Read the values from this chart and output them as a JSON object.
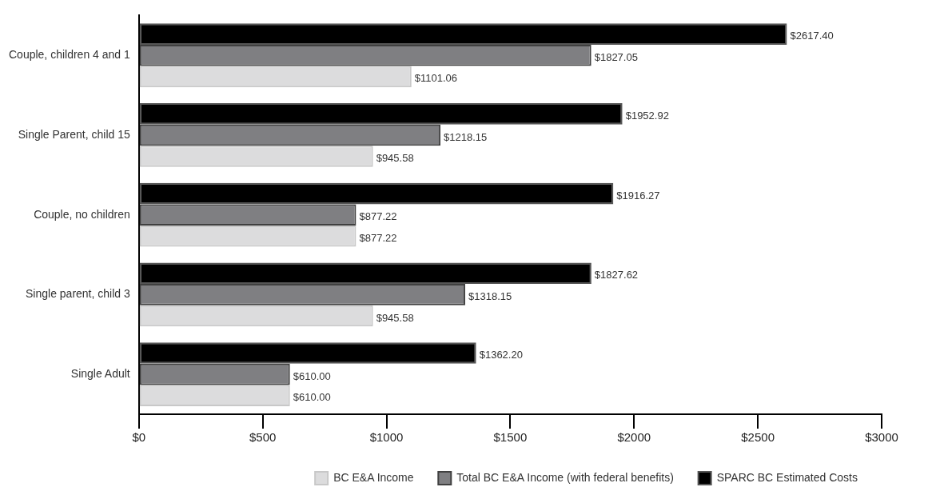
{
  "chart_data": {
    "type": "bar",
    "orientation": "horizontal",
    "categories": [
      "Couple, children 4 and 1",
      "Single Parent, child 15",
      "Couple, no children",
      "Single parent, child 3",
      "Single Adult"
    ],
    "series": [
      {
        "name": "BC E&A Income",
        "color": "#dcdcdd",
        "values": [
          1101.06,
          945.58,
          877.22,
          945.58,
          610.0
        ],
        "value_labels": [
          "$1101.06",
          "$945.58",
          "$877.22",
          "$945.58",
          "$610.00"
        ]
      },
      {
        "name": "Total BC E&A Income (with federal benefits)",
        "color": "#7f7f82",
        "values": [
          1827.05,
          1218.15,
          877.22,
          1318.15,
          610.0
        ],
        "value_labels": [
          "$1827.05",
          "$1218.15",
          "$877.22",
          "$1318.15",
          "$610.00"
        ]
      },
      {
        "name": "SPARC BC Estimated Costs",
        "color": "#000000",
        "values": [
          2617.4,
          1952.92,
          1916.27,
          1827.62,
          1362.2
        ],
        "value_labels": [
          "$2617.40",
          "$1952.92",
          "$1916.27",
          "$1827.62",
          "$1362.20"
        ]
      }
    ],
    "xlim": [
      0,
      3000
    ],
    "xticks": [
      {
        "value": 0,
        "label": "$0"
      },
      {
        "value": 500,
        "label": "$500"
      },
      {
        "value": 1000,
        "label": "$1000"
      },
      {
        "value": 1500,
        "label": "$1500"
      },
      {
        "value": 2000,
        "label": "$2000"
      },
      {
        "value": 2500,
        "label": "$2500"
      },
      {
        "value": 3000,
        "label": "$3000"
      }
    ],
    "grid": false,
    "legend": "bottom"
  }
}
